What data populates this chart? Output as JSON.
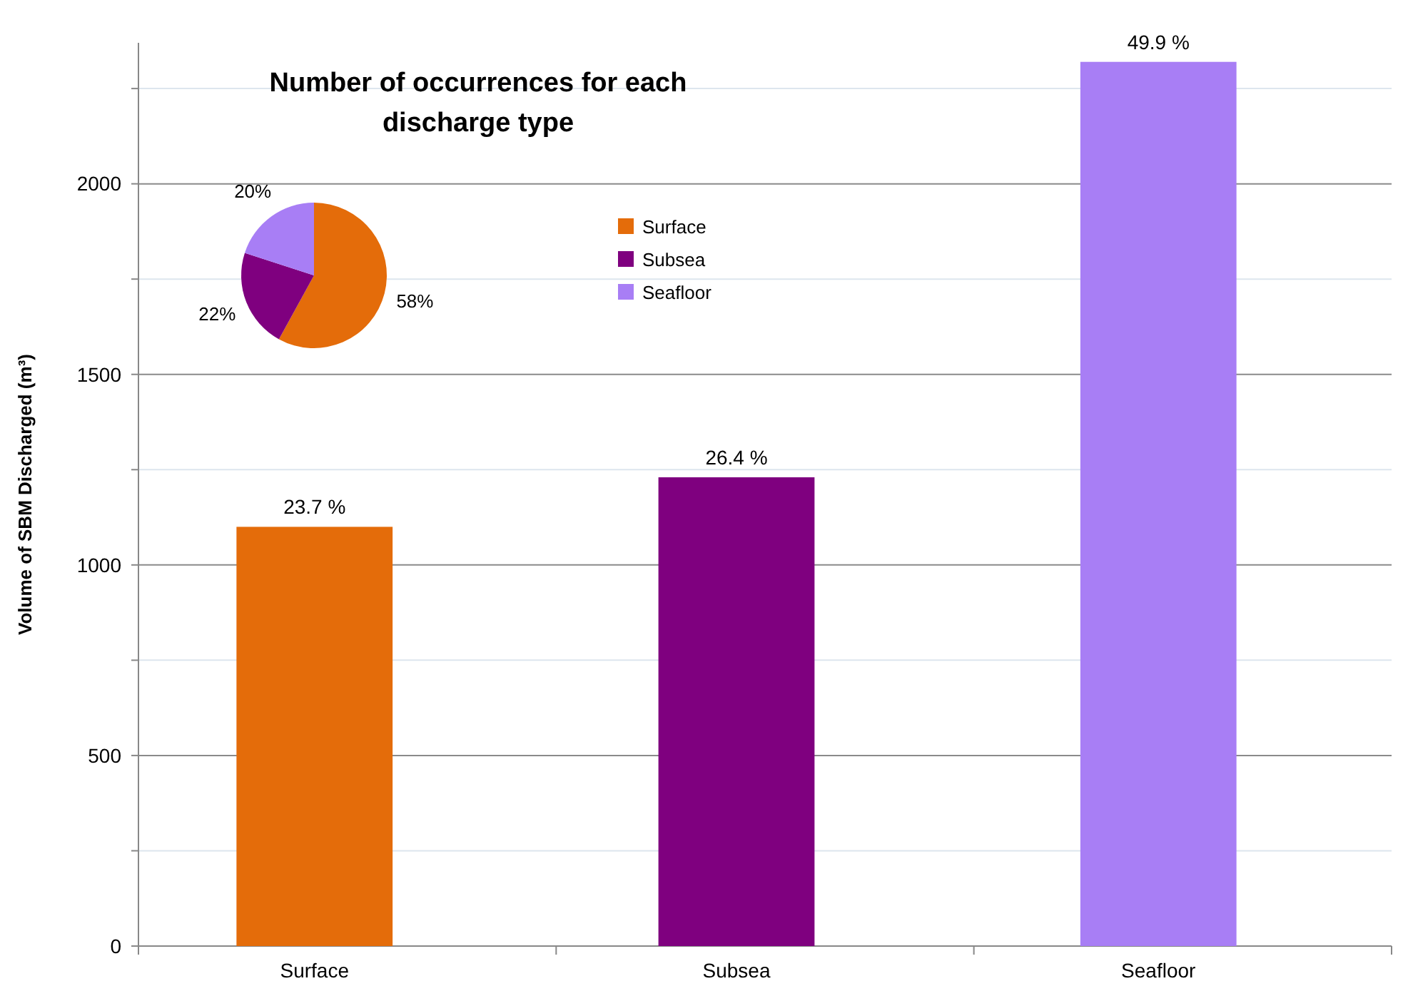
{
  "chart_data": [
    {
      "type": "bar",
      "ylabel": "Volume of SBM Discharged (m³)",
      "categories": [
        "Surface",
        "Subsea",
        "Seafloor"
      ],
      "values": [
        1100,
        1230,
        2320
      ],
      "colors": [
        "#e46c0a",
        "#7f007f",
        "#a87ef5"
      ],
      "annotations": [
        {
          "text": "23.7 %",
          "x": "Surface",
          "y": 1100
        },
        {
          "text": "26.4 %",
          "x": "Subsea",
          "y": 1230
        },
        {
          "text": "49.9 %",
          "x": "Seafloor",
          "y": 2320
        }
      ],
      "ylim": [
        0,
        2370
      ],
      "yticks": [
        0,
        {
          "value": 250,
          "label": null
        },
        500,
        {
          "value": 750,
          "label": null
        },
        1000,
        {
          "value": 1250,
          "label": null
        },
        1500,
        {
          "value": 1750,
          "label": null
        },
        2000,
        {
          "value": 2250,
          "label": null
        }
      ],
      "grid": "y"
    },
    {
      "type": "pie",
      "title": "Number of occurrences for each discharge type",
      "categories": [
        "Surface",
        "Subsea",
        "Seafloor"
      ],
      "values": [
        58,
        22,
        20
      ],
      "colors": [
        "#e46c0a",
        "#7f007f",
        "#a87ef5"
      ],
      "value_labels": [
        "58%",
        "22%",
        "20%"
      ],
      "legend": "right"
    }
  ]
}
